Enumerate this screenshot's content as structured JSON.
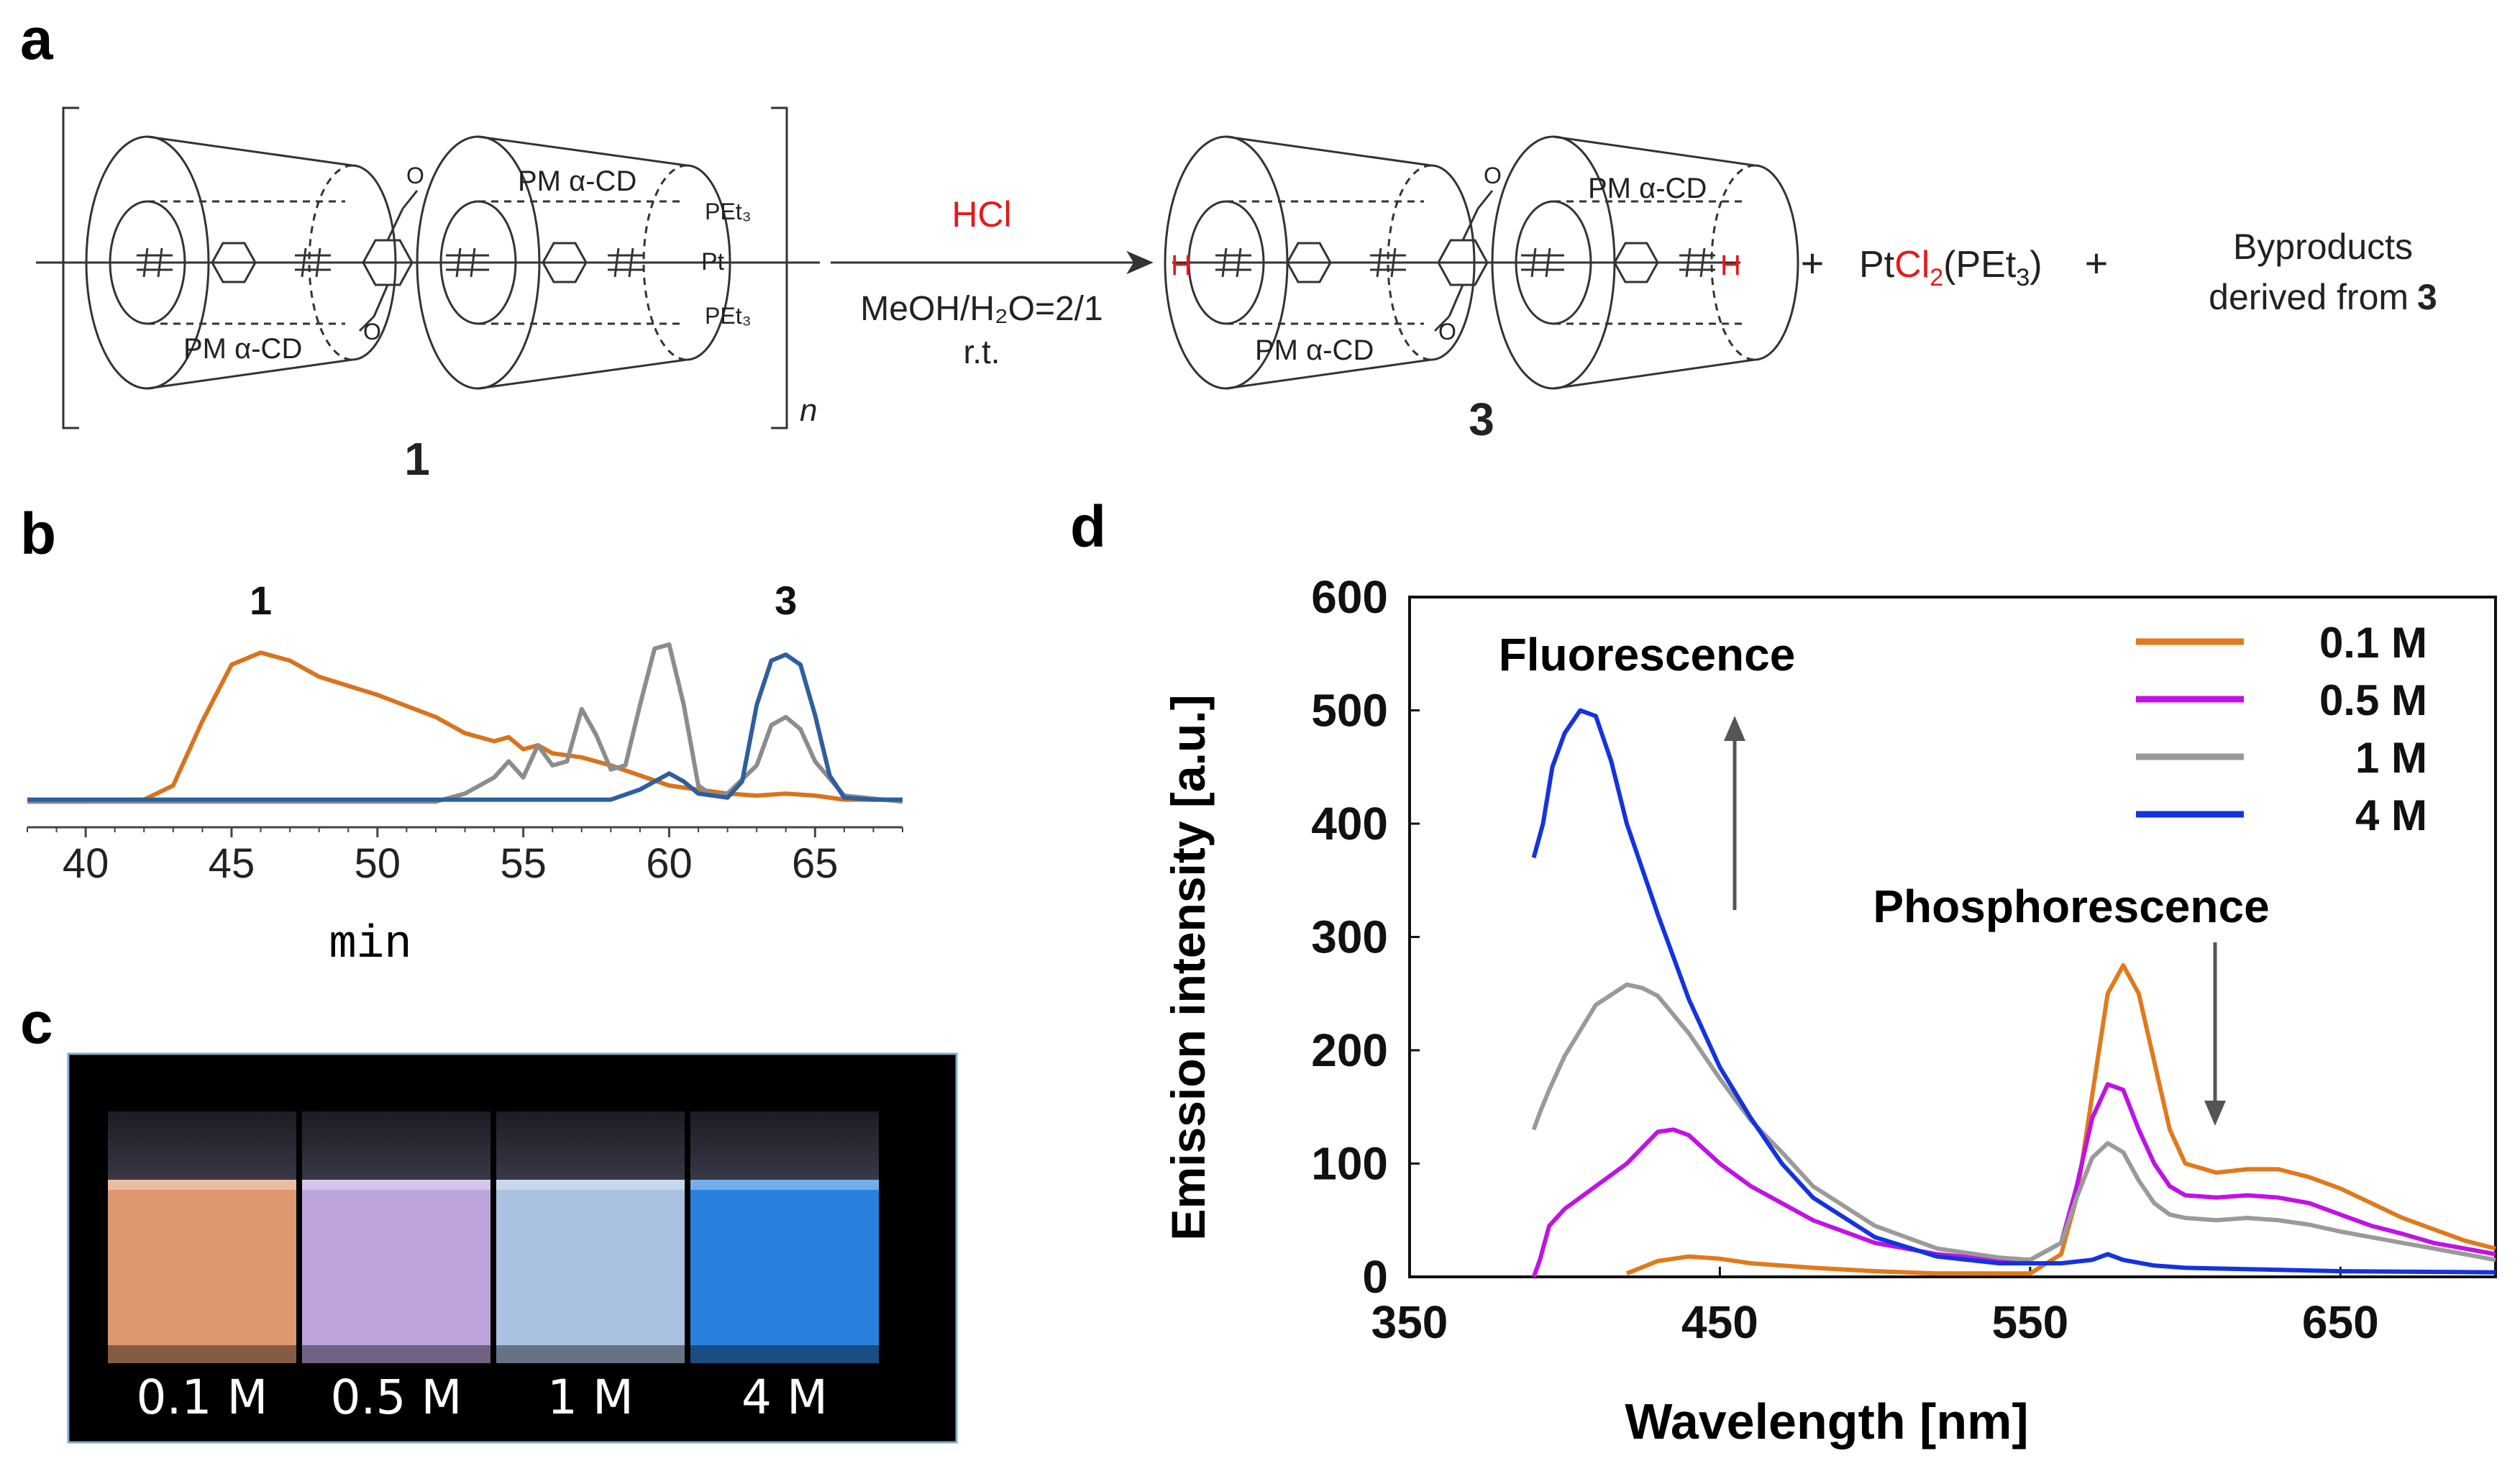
{
  "panels": {
    "a": "a",
    "b": "b",
    "c": "c",
    "d": "d"
  },
  "scheme": {
    "cd_label": "PM α-CD",
    "pet3_top": "PEt₃",
    "pt": "Pt",
    "pet3_bottom": "PEt₃",
    "oxygen": "O",
    "hydrogen": "H",
    "n": "n",
    "compound_1": "1",
    "compound_3": "3",
    "reagent": "HCl",
    "solvent": "MeOH/H₂O=2/1",
    "temperature": "r.t.",
    "plus": "+",
    "pt_product_pre": "Pt",
    "pt_product_cl": "Cl",
    "pt_product_sub2": "2",
    "pt_product_post": "(PEt",
    "pt_product_sub3": "3",
    "pt_product_end": ")",
    "byproducts_line1": "Byproducts",
    "byproducts_line2": "derived from",
    "byproducts_ref": "3"
  },
  "chart_data": [
    {
      "id": "b",
      "type": "line",
      "title": "",
      "xlabel": "min",
      "ylabel": "",
      "xlim": [
        38,
        68
      ],
      "ylim": [
        0,
        1
      ],
      "x_ticks": [
        "40",
        "45",
        "50",
        "55",
        "60",
        "65"
      ],
      "peak_labels": [
        {
          "text": "1",
          "x": 46,
          "y": 0.86
        },
        {
          "text": "3",
          "x": 64,
          "y": 0.86
        }
      ],
      "series": [
        {
          "name": "orange",
          "color": "#d9731e",
          "x": [
            38,
            40,
            42,
            43,
            44,
            45,
            46,
            47,
            48,
            50,
            52,
            53,
            54,
            54.5,
            55,
            55.5,
            56,
            57,
            58,
            59,
            60,
            61,
            62,
            63,
            64,
            65,
            66,
            68
          ],
          "y": [
            0.02,
            0.02,
            0.03,
            0.1,
            0.42,
            0.7,
            0.76,
            0.72,
            0.64,
            0.55,
            0.44,
            0.36,
            0.32,
            0.34,
            0.28,
            0.3,
            0.26,
            0.24,
            0.2,
            0.15,
            0.1,
            0.08,
            0.06,
            0.05,
            0.06,
            0.05,
            0.03,
            0.03
          ]
        },
        {
          "name": "gray",
          "color": "#8c8c8c",
          "x": [
            38,
            52,
            53,
            54,
            54.5,
            55,
            55.5,
            56,
            56.5,
            57,
            57.5,
            58,
            58.5,
            59,
            59.5,
            60,
            60.5,
            61,
            61.5,
            62,
            63,
            63.5,
            64,
            64.5,
            65,
            66,
            68
          ],
          "y": [
            0.02,
            0.02,
            0.06,
            0.14,
            0.22,
            0.14,
            0.3,
            0.2,
            0.22,
            0.48,
            0.35,
            0.18,
            0.2,
            0.5,
            0.78,
            0.8,
            0.5,
            0.1,
            0.05,
            0.06,
            0.2,
            0.4,
            0.44,
            0.38,
            0.22,
            0.05,
            0.02
          ]
        },
        {
          "name": "blue",
          "color": "#2e5e9e",
          "x": [
            38,
            58,
            59,
            59.5,
            60,
            60.5,
            61,
            62,
            62.5,
            63,
            63.5,
            64,
            64.5,
            65,
            65.5,
            66,
            67,
            68
          ],
          "y": [
            0.03,
            0.03,
            0.08,
            0.12,
            0.16,
            0.12,
            0.06,
            0.04,
            0.12,
            0.5,
            0.72,
            0.75,
            0.7,
            0.45,
            0.15,
            0.04,
            0.03,
            0.03
          ]
        }
      ]
    },
    {
      "id": "d",
      "type": "line",
      "title": "",
      "xlabel": "Wavelength [nm]",
      "ylabel": "Emission intensity [a.u.]",
      "xlim": [
        350,
        700
      ],
      "ylim": [
        0,
        600
      ],
      "x_ticks": [
        "350",
        "450",
        "550",
        "650"
      ],
      "y_ticks": [
        "0",
        "100",
        "200",
        "300",
        "400",
        "500",
        "600"
      ],
      "legend_position": "top-right",
      "series": [
        {
          "name": "0.1 M",
          "color": "#e07a1c",
          "x": [
            420,
            430,
            440,
            450,
            460,
            480,
            500,
            520,
            540,
            550,
            560,
            565,
            570,
            575,
            580,
            585,
            590,
            595,
            600,
            610,
            620,
            630,
            640,
            650,
            660,
            670,
            680,
            690,
            700
          ],
          "y": [
            3,
            14,
            18,
            16,
            12,
            8,
            5,
            3,
            3,
            3,
            20,
            70,
            160,
            250,
            275,
            250,
            190,
            130,
            100,
            92,
            95,
            95,
            88,
            78,
            65,
            52,
            42,
            32,
            25
          ]
        },
        {
          "name": "0.5 M",
          "color": "#c012e6",
          "x": [
            390,
            392,
            395,
            400,
            410,
            420,
            430,
            435,
            440,
            450,
            460,
            480,
            500,
            520,
            540,
            550,
            560,
            565,
            570,
            575,
            580,
            585,
            590,
            595,
            600,
            610,
            620,
            630,
            640,
            650,
            660,
            670,
            680,
            690,
            700
          ],
          "y": [
            0,
            15,
            45,
            60,
            80,
            100,
            128,
            130,
            125,
            100,
            80,
            50,
            30,
            20,
            15,
            15,
            30,
            80,
            140,
            170,
            165,
            130,
            100,
            80,
            72,
            70,
            72,
            70,
            65,
            55,
            45,
            38,
            30,
            25,
            20
          ]
        },
        {
          "name": "1 M",
          "color": "#9a9a9a",
          "x": [
            390,
            392,
            395,
            400,
            410,
            420,
            425,
            430,
            440,
            450,
            460,
            470,
            480,
            500,
            520,
            540,
            550,
            560,
            565,
            570,
            575,
            580,
            585,
            590,
            595,
            600,
            610,
            620,
            630,
            640,
            650,
            660,
            670,
            680,
            690,
            700
          ],
          "y": [
            130,
            145,
            165,
            195,
            240,
            258,
            255,
            248,
            215,
            175,
            138,
            110,
            80,
            45,
            25,
            17,
            15,
            30,
            70,
            105,
            118,
            110,
            85,
            65,
            55,
            52,
            50,
            52,
            50,
            46,
            40,
            35,
            30,
            25,
            20,
            15
          ]
        },
        {
          "name": "4 M",
          "color": "#1433e0",
          "x": [
            390,
            393,
            396,
            400,
            405,
            410,
            415,
            420,
            430,
            440,
            450,
            460,
            470,
            480,
            500,
            520,
            540,
            550,
            560,
            570,
            575,
            580,
            590,
            600,
            650,
            700
          ],
          "y": [
            370,
            400,
            450,
            480,
            500,
            495,
            455,
            400,
            320,
            245,
            185,
            140,
            100,
            70,
            35,
            18,
            12,
            12,
            12,
            15,
            20,
            15,
            10,
            8,
            5,
            4
          ]
        }
      ],
      "annotations": [
        {
          "text": "Fluorescence",
          "arrow": "up"
        },
        {
          "text": "Phosphorescence",
          "arrow": "down"
        }
      ]
    }
  ],
  "photo": {
    "labels": [
      "0.1 M",
      "0.5 M",
      "1 M",
      "4 M"
    ],
    "colors": [
      "#f0a57a",
      "#cdb3ef",
      "#b8d2f2",
      "#2d8cf0"
    ]
  }
}
